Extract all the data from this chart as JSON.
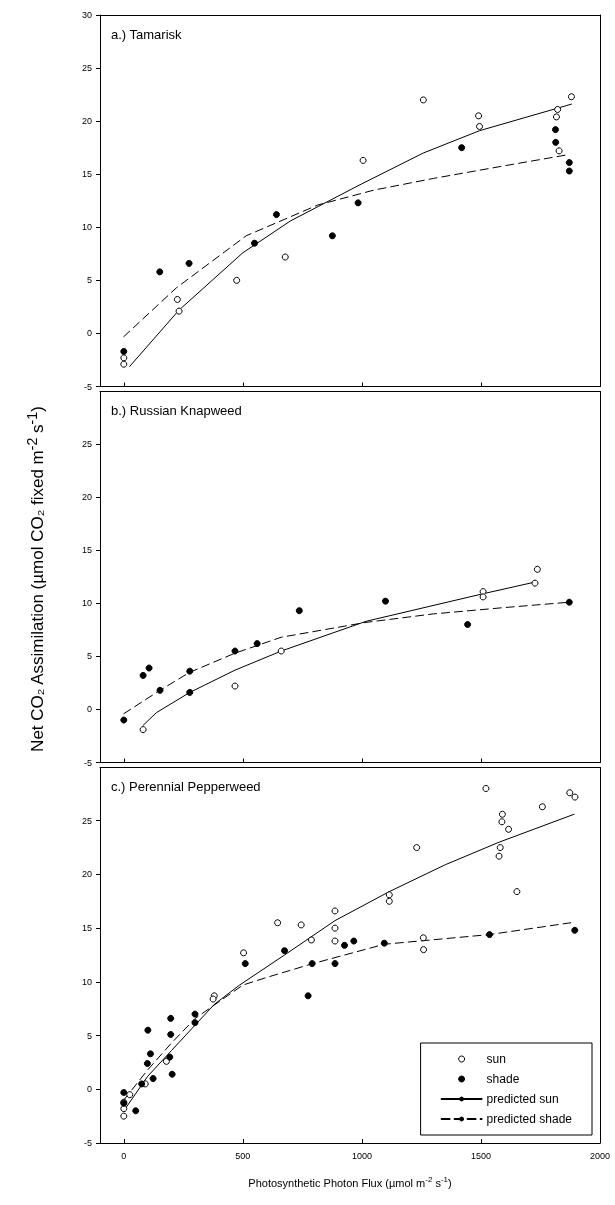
{
  "chart_data": [
    {
      "type": "scatter",
      "title": "a.) Tamarisk",
      "xlim": [
        -100,
        2000
      ],
      "xticks": [
        0,
        500,
        1000,
        1500,
        2000
      ],
      "ylim": [
        -5,
        30
      ],
      "yticks": [
        -5,
        0,
        5,
        10,
        15,
        20,
        25,
        30
      ],
      "tick_labels": "y",
      "series": [
        {
          "color": "#ffffff",
          "marker": "circle",
          "x": [
            1258,
            1880,
            1490,
            1494,
            1822,
            1817,
            1828,
            1005,
            678,
            474,
            225,
            232,
            0,
            0
          ],
          "values": [
            22.0,
            22.3,
            20.5,
            19.5,
            21.1,
            20.4,
            17.2,
            16.3,
            7.2,
            5.0,
            3.2,
            2.1,
            -2.3,
            -2.9
          ]
        },
        {
          "color": "#000000",
          "marker": "circle",
          "x": [
            151,
            274,
            549,
            641,
            876,
            984,
            1419,
            1813,
            1814,
            1871,
            1871,
            0
          ],
          "values": [
            5.8,
            6.6,
            8.5,
            11.2,
            9.2,
            12.3,
            17.5,
            19.2,
            18.0,
            16.1,
            15.3,
            -1.7
          ]
        },
        {
          "type": "line",
          "color": "#000000",
          "line_style": "solid",
          "x": [
            25,
            232,
            500,
            700,
            1000,
            1258,
            1494,
            1880
          ],
          "values": [
            -3.1,
            2.2,
            7.6,
            10.6,
            14.1,
            17.0,
            19.1,
            21.6
          ]
        },
        {
          "type": "line",
          "color": "#000000",
          "line_style": "dashed",
          "x": [
            0,
            221,
            514,
            815,
            1050,
            1300,
            1600,
            1856
          ],
          "values": [
            -0.3,
            4.3,
            9.2,
            12.1,
            13.5,
            14.6,
            15.8,
            16.8
          ]
        }
      ]
    },
    {
      "type": "scatter",
      "title": "b.) Russian Knapweed",
      "ylabel": "Net  CO₂ Assimilation (µmol CO₂ fixed m$^{-2}$ s$^{-1}$)",
      "xlim": [
        -100,
        2000
      ],
      "xticks": [
        0,
        500,
        1000,
        1500,
        2000
      ],
      "ylim": [
        -5,
        30
      ],
      "yticks": [
        -5,
        0,
        5,
        10,
        15,
        20,
        25
      ],
      "tick_labels": "y",
      "series": [
        {
          "color": "#ffffff",
          "marker": "circle",
          "x": [
            1737,
            1727,
            1509,
            1509,
            467,
            661,
            81
          ],
          "values": [
            13.2,
            11.9,
            11.1,
            10.6,
            2.2,
            5.5,
            -1.9
          ]
        },
        {
          "color": "#000000",
          "marker": "circle",
          "x": [
            1871,
            1444,
            1099,
            737,
            560,
            467,
            277,
            277,
            152,
            81,
            106,
            0
          ],
          "values": [
            10.1,
            8.0,
            10.2,
            9.3,
            6.2,
            5.5,
            3.6,
            1.6,
            1.8,
            3.2,
            3.9,
            -1.0
          ]
        },
        {
          "type": "line",
          "color": "#000000",
          "line_style": "solid",
          "x": [
            81,
            137,
            277,
            467,
            661,
            1017,
            1509,
            1727
          ],
          "values": [
            -1.5,
            -0.3,
            1.6,
            3.7,
            5.5,
            8.3,
            10.9,
            12.0
          ]
        },
        {
          "type": "line",
          "color": "#000000",
          "line_style": "dashed",
          "x": [
            0,
            152,
            277,
            467,
            661,
            1017,
            1300,
            1600,
            1871
          ],
          "values": [
            -0.4,
            1.8,
            3.5,
            5.3,
            6.8,
            8.2,
            9.0,
            9.6,
            10.1
          ]
        }
      ]
    },
    {
      "type": "scatter",
      "title": "c.) Perennial Pepperweed",
      "xlabel": "Photosynthetic Photon Flux (µmol m$^{-2}$ s$^{-1}$)",
      "xlim": [
        -100,
        2000
      ],
      "xticks": [
        0,
        500,
        1000,
        1500,
        2000
      ],
      "ylim": [
        -5,
        30
      ],
      "yticks": [
        -5,
        0,
        5,
        10,
        15,
        20,
        25
      ],
      "legend": "bottom right",
      "series": [
        {
          "name": "sun",
          "color": "#ffffff",
          "marker": "circle",
          "x": [
            1521,
            1873,
            1895,
            1758,
            1590,
            1588,
            1616,
            1230,
            1581,
            1576,
            1651,
            1115,
            1115,
            887,
            887,
            887,
            646,
            745,
            788,
            1258,
            1259,
            503,
            380,
            375,
            179,
            0,
            0,
            0,
            25,
            90
          ],
          "values": [
            28.0,
            27.6,
            27.2,
            26.3,
            25.6,
            24.9,
            24.2,
            22.5,
            22.5,
            21.7,
            18.4,
            18.1,
            17.5,
            16.6,
            15.0,
            13.8,
            15.5,
            15.3,
            13.9,
            14.1,
            13.0,
            12.7,
            8.7,
            8.4,
            2.6,
            -2.5,
            -1.8,
            -1.2,
            -0.5,
            0.5
          ]
        },
        {
          "name": "shade",
          "color": "#000000",
          "marker": "circle",
          "x": [
            101,
            197,
            197,
            299,
            299,
            112,
            99,
            193,
            203,
            123,
            510,
            675,
            774,
            791,
            887,
            927,
            966,
            1094,
            1536,
            1894,
            0,
            0,
            50,
            75
          ],
          "values": [
            5.5,
            6.6,
            5.1,
            7.0,
            6.2,
            3.3,
            2.4,
            3.0,
            1.4,
            1.0,
            11.7,
            12.9,
            8.7,
            11.7,
            11.7,
            13.4,
            13.8,
            13.6,
            14.4,
            14.8,
            -0.3,
            -1.3,
            -2.0,
            0.5
          ]
        },
        {
          "name": "predicted sun",
          "type": "line",
          "color": "#000000",
          "line_style": "solid",
          "x": [
            0,
            100,
            200,
            380,
            486,
            675,
            887,
            1115,
            1350,
            1576,
            1891
          ],
          "values": [
            -2.0,
            1.2,
            3.6,
            7.9,
            9.7,
            12.5,
            15.7,
            18.4,
            20.9,
            23.0,
            25.6
          ]
        },
        {
          "name": "predicted shade",
          "type": "line",
          "color": "#000000",
          "line_style": "dashed",
          "x": [
            0,
            100,
            200,
            300,
            500,
            598,
            794,
            1094,
            1535,
            1877
          ],
          "values": [
            -1.0,
            1.8,
            4.3,
            6.6,
            9.7,
            10.4,
            11.7,
            13.5,
            14.4,
            15.5
          ]
        }
      ]
    }
  ]
}
